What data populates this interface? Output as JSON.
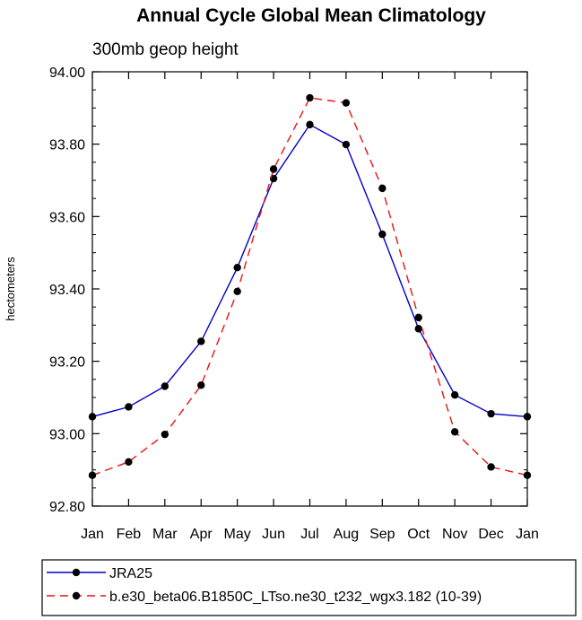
{
  "chart_data": {
    "type": "line",
    "title": "Annual Cycle Global Mean Climatology",
    "subtitle": "300mb geop height",
    "xlabel": "",
    "ylabel": "hectometers",
    "categories": [
      "Jan",
      "Feb",
      "Mar",
      "Apr",
      "May",
      "Jun",
      "Jul",
      "Aug",
      "Sep",
      "Oct",
      "Nov",
      "Dec",
      "Jan"
    ],
    "ylim": [
      92.8,
      94.0
    ],
    "yticks": [
      92.8,
      93.0,
      93.2,
      93.4,
      93.6,
      93.8,
      94.0
    ],
    "ytick_labels": [
      "92.80",
      "93.00",
      "93.20",
      "93.40",
      "93.60",
      "93.80",
      "94.00"
    ],
    "series": [
      {
        "name": "JRA25",
        "color": "#0000cc",
        "dash": "solid",
        "marker": "circle",
        "values": [
          93.047,
          93.074,
          93.131,
          93.255,
          93.459,
          93.705,
          93.854,
          93.799,
          93.551,
          93.29,
          93.107,
          93.055,
          93.047
        ]
      },
      {
        "name": "b.e30_beta06.B1850C_LTso.ne30_t232_wgx3.182 (10-39)",
        "color": "#ee1111",
        "dash": "dashed",
        "marker": "circle",
        "values": [
          92.885,
          92.922,
          92.998,
          93.134,
          93.393,
          93.731,
          93.928,
          93.914,
          93.678,
          93.321,
          93.005,
          92.908,
          92.885
        ]
      }
    ],
    "legend_position": "bottom-left"
  }
}
